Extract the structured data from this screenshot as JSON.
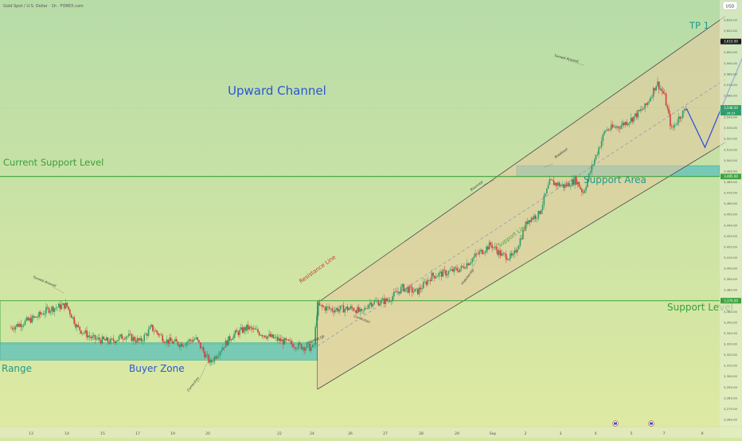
{
  "header": {
    "symbol_title": "Gold Spot / U.S. Dollar · 1h · FOREX.com",
    "currency": "USD"
  },
  "annotations": {
    "upward_channel": "Upward Channel",
    "current_support_level": "Current Support Level",
    "support_area": "Support Area",
    "support_level": "Support Level",
    "range": "Range",
    "buyer_zone": "Buyer Zone",
    "tp1": "TP 1",
    "resistance_line": "Resistance Line",
    "support_line": "Support Line",
    "turned_around_left": "Turned Around",
    "turned_around_right": "Turned Around",
    "correction_left": "Correction",
    "correction_mid": "Correction",
    "impulse_up_left": "Impulse Up",
    "impulse_up_right": "Impulse Up",
    "bounced": "Bounced",
    "breakout": "Breakout"
  },
  "price_tags": {
    "tp_level": "3,610.00",
    "current_price": "3,548.50",
    "countdown": "26:23",
    "support_area_level": "3,485.00",
    "support_level": "3,370.00"
  },
  "colors": {
    "background_top": "#b9dea6",
    "background_bottom": "#dbe9a3",
    "bull_candle": "#2f9d6a",
    "bear_candle": "#d33d3d",
    "zone_fill": "#69c4b7",
    "level_line": "#3da33d",
    "projection": "#2f54d8",
    "channel_line": "#4a4a4a",
    "blue_text": "#2b55d3",
    "green_text": "#3a9f3a",
    "teal_text": "#1f9a8a"
  },
  "chart_data": {
    "type": "candlestick",
    "title": "Gold Spot / U.S. Dollar · 1h · FOREX.com",
    "y_axis": {
      "ylim": [
        3250,
        3640
      ],
      "ticks": [
        3260,
        3270,
        3280,
        3290,
        3300,
        3310,
        3320,
        3330,
        3340,
        3350,
        3360,
        3370,
        3380,
        3390,
        3400,
        3410,
        3420,
        3430,
        3440,
        3450,
        3460,
        3470,
        3480,
        3490,
        3500,
        3510,
        3520,
        3530,
        3540,
        3550,
        3560,
        3570,
        3580,
        3590,
        3600,
        3610,
        3620,
        3630
      ]
    },
    "x_axis": {
      "tick_labels": [
        "13",
        "14",
        "15",
        "17",
        "19",
        "20",
        "22",
        "24",
        "26",
        "27",
        "28",
        "29",
        "Sep",
        "2",
        "3",
        "4",
        "5",
        "7",
        "9"
      ],
      "tick_positions": [
        0.5,
        1.5,
        2.5,
        3.5,
        4.5,
        5.5,
        6.5,
        7.5,
        8.5,
        9.5,
        10.5,
        11.5,
        12.5,
        13.5,
        14.5,
        15.5,
        16.5,
        17.5,
        18.5
      ],
      "xlim": [
        -0.3,
        19.2
      ]
    },
    "price_path": [
      [
        0.0,
        3345
      ],
      [
        0.7,
        3355
      ],
      [
        1.0,
        3362
      ],
      [
        1.5,
        3366
      ],
      [
        1.8,
        3345
      ],
      [
        2.2,
        3335
      ],
      [
        2.7,
        3332
      ],
      [
        3.1,
        3338
      ],
      [
        3.5,
        3332
      ],
      [
        3.8,
        3345
      ],
      [
        4.2,
        3333
      ],
      [
        4.6,
        3330
      ],
      [
        5.0,
        3335
      ],
      [
        5.4,
        3312
      ],
      [
        5.6,
        3322
      ],
      [
        6.0,
        3338
      ],
      [
        6.4,
        3345
      ],
      [
        6.9,
        3338
      ],
      [
        7.3,
        3333
      ],
      [
        7.8,
        3328
      ],
      [
        8.2,
        3326
      ],
      [
        8.3,
        3365
      ],
      [
        8.7,
        3362
      ],
      [
        9.3,
        3363
      ],
      [
        9.5,
        3358
      ],
      [
        9.7,
        3368
      ],
      [
        10.2,
        3370
      ],
      [
        10.6,
        3382
      ],
      [
        11.0,
        3378
      ],
      [
        11.4,
        3393
      ],
      [
        11.8,
        3396
      ],
      [
        12.2,
        3400
      ],
      [
        12.6,
        3412
      ],
      [
        13.0,
        3422
      ],
      [
        13.3,
        3412
      ],
      [
        13.6,
        3410
      ],
      [
        14.0,
        3445
      ],
      [
        14.3,
        3450
      ],
      [
        14.6,
        3480
      ],
      [
        15.0,
        3476
      ],
      [
        15.3,
        3482
      ],
      [
        15.5,
        3470
      ],
      [
        15.8,
        3500
      ],
      [
        16.1,
        3528
      ],
      [
        16.5,
        3532
      ],
      [
        16.8,
        3538
      ],
      [
        17.2,
        3550
      ],
      [
        17.5,
        3572
      ],
      [
        17.7,
        3560
      ],
      [
        17.9,
        3528
      ],
      [
        18.1,
        3540
      ],
      [
        18.3,
        3548
      ]
    ],
    "levels": {
      "support_level": 3370,
      "current_support_level": 3485,
      "tp1": 3610,
      "current_price": 3548.5
    },
    "zones": {
      "range": [
        3330,
        3370
      ],
      "buyer_zone": [
        3315,
        3330
      ],
      "support_area": [
        3485,
        3495
      ]
    },
    "channel": {
      "resistance_line": [
        [
          8.3,
          3368
        ],
        [
          20.0,
          3649
        ]
      ],
      "support_line": [
        [
          8.3,
          3288
        ],
        [
          20.0,
          3530
        ]
      ]
    },
    "projection": [
      [
        18.3,
        3548
      ],
      [
        18.8,
        3512
      ],
      [
        20.0,
        3610
      ],
      [
        20.8,
        3610
      ]
    ]
  }
}
